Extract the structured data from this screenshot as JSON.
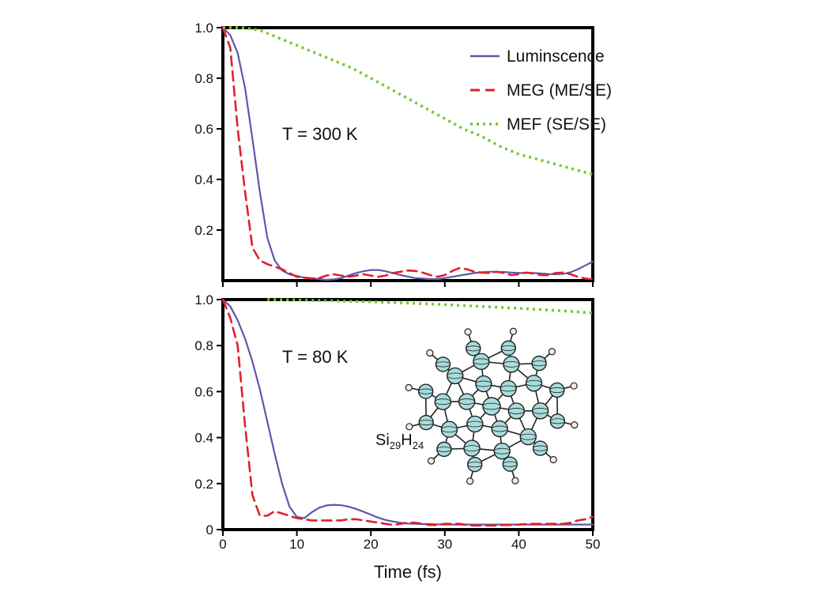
{
  "chart_data": [
    {
      "type": "line",
      "annotation": "T = 300 K",
      "xlim": [
        0,
        50
      ],
      "ylim": [
        0,
        1.0
      ],
      "yticks": [
        "0.2",
        "0.4",
        "0.6",
        "0.8",
        "1.0"
      ],
      "legend": {
        "placement": "top-right"
      },
      "series": [
        {
          "name": "Luminscence",
          "color": "#5a5aa8",
          "dash": "solid",
          "x": [
            0,
            1,
            2,
            3,
            4,
            5,
            6,
            7,
            8,
            9,
            10,
            11,
            12,
            13,
            14,
            15,
            16,
            17,
            18,
            19,
            20,
            21,
            22,
            23,
            24,
            25,
            26,
            27,
            28,
            29,
            30,
            31,
            32,
            33,
            34,
            35,
            36,
            37,
            38,
            39,
            40,
            41,
            42,
            43,
            44,
            45,
            46,
            47,
            48,
            49,
            50
          ],
          "y": [
            1.0,
            0.97,
            0.9,
            0.76,
            0.56,
            0.35,
            0.17,
            0.08,
            0.04,
            0.025,
            0.018,
            0.012,
            0.01,
            0.006,
            0.003,
            0.005,
            0.01,
            0.02,
            0.03,
            0.037,
            0.042,
            0.042,
            0.037,
            0.03,
            0.022,
            0.016,
            0.01,
            0.008,
            0.006,
            0.006,
            0.01,
            0.015,
            0.02,
            0.025,
            0.03,
            0.033,
            0.035,
            0.035,
            0.034,
            0.032,
            0.03,
            0.03,
            0.03,
            0.028,
            0.026,
            0.025,
            0.027,
            0.033,
            0.045,
            0.06,
            0.075
          ]
        },
        {
          "name": "MEG (ME/SE)",
          "color": "#e0202e",
          "dash": "dashed",
          "x": [
            0,
            1,
            2,
            3,
            4,
            5,
            6,
            7,
            8,
            9,
            10,
            11,
            12,
            13,
            14,
            15,
            16,
            17,
            18,
            19,
            20,
            21,
            22,
            23,
            24,
            25,
            26,
            27,
            28,
            29,
            30,
            31,
            32,
            33,
            34,
            35,
            36,
            37,
            38,
            39,
            40,
            41,
            42,
            43,
            44,
            45,
            46,
            47,
            48,
            49,
            50
          ],
          "y": [
            1.0,
            0.92,
            0.6,
            0.35,
            0.13,
            0.08,
            0.065,
            0.055,
            0.045,
            0.03,
            0.015,
            0.012,
            0.008,
            0.01,
            0.02,
            0.025,
            0.02,
            0.015,
            0.02,
            0.025,
            0.02,
            0.015,
            0.02,
            0.03,
            0.035,
            0.04,
            0.038,
            0.032,
            0.022,
            0.015,
            0.022,
            0.038,
            0.05,
            0.045,
            0.035,
            0.032,
            0.03,
            0.035,
            0.03,
            0.022,
            0.025,
            0.032,
            0.028,
            0.022,
            0.022,
            0.03,
            0.032,
            0.025,
            0.015,
            0.008,
            0.005
          ]
        },
        {
          "name": "MEF (SE/SE)",
          "color": "#74c72a",
          "dash": "dotted",
          "x": [
            0,
            2.5,
            5,
            7.5,
            10,
            12.5,
            15,
            17.5,
            20,
            22.5,
            25,
            27.5,
            30,
            32.5,
            35,
            37.5,
            40,
            42.5,
            45,
            47.5,
            50
          ],
          "y": [
            1.0,
            1.0,
            0.99,
            0.96,
            0.93,
            0.9,
            0.87,
            0.84,
            0.8,
            0.76,
            0.72,
            0.68,
            0.64,
            0.6,
            0.57,
            0.53,
            0.5,
            0.48,
            0.46,
            0.44,
            0.42
          ]
        }
      ]
    },
    {
      "type": "line",
      "annotation": "T = 80 K",
      "xlim": [
        0,
        50
      ],
      "ylim": [
        0,
        1.0
      ],
      "xticks": [
        "0",
        "10",
        "20",
        "30",
        "40",
        "50"
      ],
      "yticks": [
        "0",
        "0.2",
        "0.4",
        "0.6",
        "0.8",
        "1.0"
      ],
      "xlabel": "Time (fs)",
      "series": [
        {
          "name": "Luminscence",
          "color": "#5a5aa8",
          "dash": "solid",
          "x": [
            0,
            1,
            2,
            3,
            4,
            5,
            6,
            7,
            8,
            9,
            10,
            11,
            12,
            13,
            14,
            15,
            16,
            17,
            18,
            19,
            20,
            21,
            22,
            23,
            24,
            25,
            26,
            27,
            28,
            29,
            30,
            31,
            32,
            33,
            34,
            35,
            36,
            37,
            38,
            39,
            40,
            41,
            42,
            43,
            44,
            45,
            46,
            47,
            48,
            49,
            50
          ],
          "y": [
            1.0,
            0.97,
            0.91,
            0.83,
            0.73,
            0.61,
            0.47,
            0.33,
            0.2,
            0.1,
            0.055,
            0.05,
            0.075,
            0.095,
            0.105,
            0.108,
            0.106,
            0.1,
            0.09,
            0.078,
            0.065,
            0.052,
            0.042,
            0.035,
            0.03,
            0.026,
            0.025,
            0.024,
            0.024,
            0.023,
            0.022,
            0.022,
            0.022,
            0.022,
            0.022,
            0.022,
            0.022,
            0.022,
            0.022,
            0.022,
            0.022,
            0.022,
            0.022,
            0.022,
            0.022,
            0.022,
            0.022,
            0.022,
            0.022,
            0.022,
            0.022
          ]
        },
        {
          "name": "MEG (ME/SE)",
          "color": "#e0202e",
          "dash": "dashed",
          "x": [
            0,
            1,
            2,
            3,
            4,
            5,
            6,
            7,
            8,
            9,
            10,
            11,
            12,
            13,
            14,
            15,
            16,
            17,
            18,
            19,
            20,
            21,
            22,
            23,
            24,
            25,
            26,
            27,
            28,
            29,
            30,
            31,
            32,
            33,
            34,
            35,
            36,
            37,
            38,
            39,
            40,
            41,
            42,
            43,
            44,
            45,
            46,
            47,
            48,
            49,
            50
          ],
          "y": [
            1.0,
            0.92,
            0.8,
            0.45,
            0.15,
            0.06,
            0.06,
            0.08,
            0.07,
            0.06,
            0.05,
            0.045,
            0.04,
            0.04,
            0.04,
            0.04,
            0.04,
            0.045,
            0.045,
            0.04,
            0.035,
            0.03,
            0.025,
            0.02,
            0.025,
            0.03,
            0.03,
            0.025,
            0.02,
            0.02,
            0.025,
            0.025,
            0.025,
            0.02,
            0.018,
            0.018,
            0.018,
            0.018,
            0.02,
            0.02,
            0.022,
            0.024,
            0.025,
            0.025,
            0.025,
            0.025,
            0.025,
            0.03,
            0.04,
            0.045,
            0.055
          ]
        },
        {
          "name": "MEF (SE/SE)",
          "color": "#74c72a",
          "dash": "dotted",
          "x": [
            6,
            10,
            15,
            20,
            25,
            30,
            35,
            40,
            45,
            50
          ],
          "y": [
            1.0,
            0.998,
            0.995,
            0.99,
            0.985,
            0.978,
            0.97,
            0.962,
            0.953,
            0.942
          ]
        }
      ]
    }
  ],
  "molecule": {
    "name": "Si29H24",
    "element1": "Si",
    "subscript1": "29",
    "element2": "H",
    "subscript2": "24"
  }
}
